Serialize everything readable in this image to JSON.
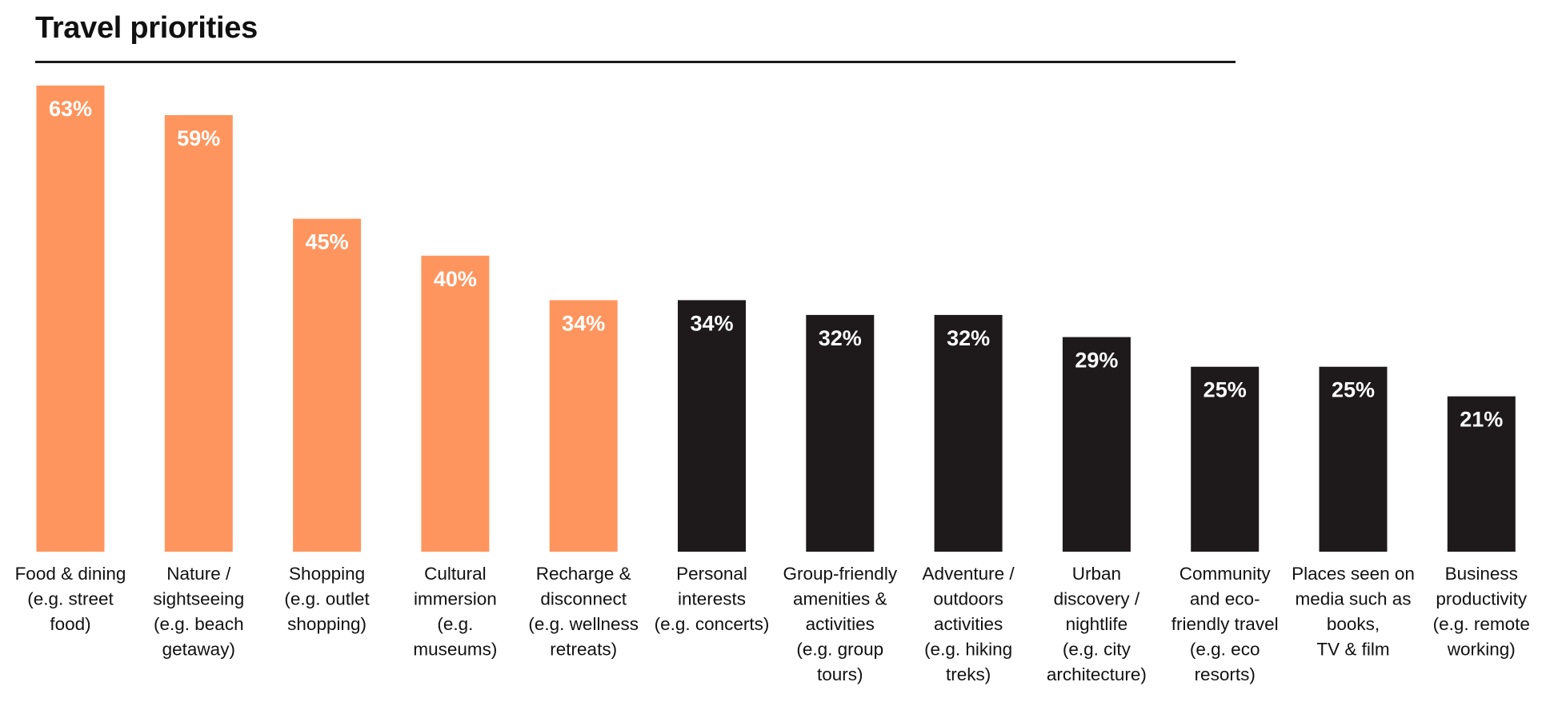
{
  "chart_data": {
    "type": "bar",
    "title": "Travel priorities",
    "xlabel": "",
    "ylabel": "",
    "ylim": [
      0,
      63
    ],
    "grid": false,
    "value_suffix": "%",
    "colors": {
      "highlight": "#FF955E",
      "default": "#1E1A1B"
    },
    "highlighted_count": 5,
    "categories": [
      [
        "Food & dining",
        "(e.g. street",
        "food)"
      ],
      [
        "Nature /",
        "sightseeing",
        "(e.g. beach",
        "getaway)"
      ],
      [
        "Shopping",
        "(e.g. outlet",
        "shopping)"
      ],
      [
        "Cultural",
        "immersion",
        "(e.g.",
        "museums)"
      ],
      [
        "Recharge &",
        "disconnect",
        "(e.g. wellness",
        "retreats)"
      ],
      [
        "Personal",
        "interests",
        "(e.g. concerts)"
      ],
      [
        "Group-friendly",
        "amenities &",
        "activities",
        "(e.g. group",
        "tours)"
      ],
      [
        "Adventure /",
        "outdoors",
        "activities",
        "(e.g. hiking",
        "treks)"
      ],
      [
        "Urban",
        "discovery /",
        "nightlife",
        "(e.g. city",
        "architecture)"
      ],
      [
        "Community",
        "and eco-",
        "friendly travel",
        "(e.g. eco",
        "resorts)"
      ],
      [
        "Places seen on",
        "media such as",
        "books,",
        "TV & film"
      ],
      [
        "Business",
        "productivity",
        "(e.g. remote",
        "working)"
      ]
    ],
    "values": [
      63,
      59,
      45,
      40,
      34,
      34,
      32,
      32,
      29,
      25,
      25,
      21
    ]
  }
}
